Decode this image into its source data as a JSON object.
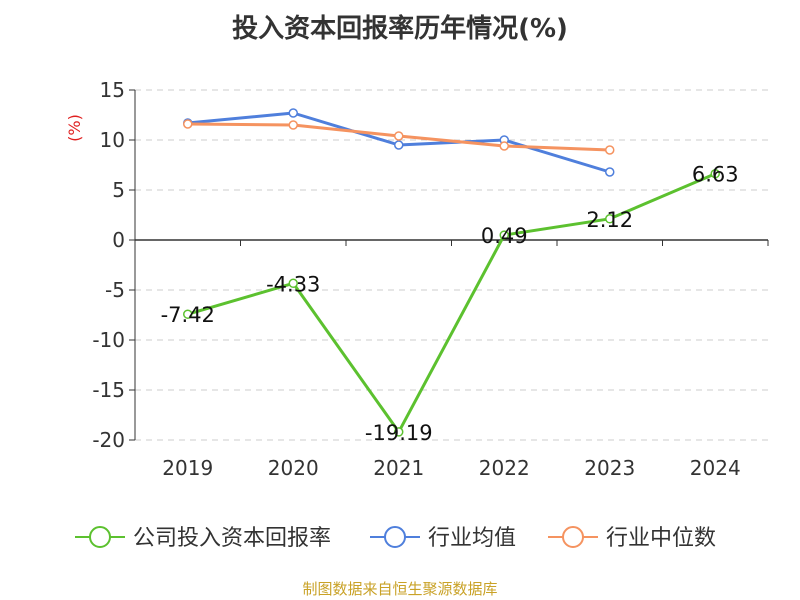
{
  "chart_data": {
    "type": "line",
    "title": "投入资本回报率历年情况(%)",
    "ylabel": "(%)",
    "ylim": [
      -20,
      15
    ],
    "yticks": [
      15,
      10,
      5,
      0,
      -5,
      -10,
      -15,
      -20
    ],
    "categories": [
      "2019",
      "2020",
      "2021",
      "2022",
      "2023",
      "2024"
    ],
    "grid": true,
    "legend_position": "bottom",
    "series": [
      {
        "name": "公司投入资本回报率",
        "color": "#5cc12f",
        "values": [
          -7.42,
          -4.33,
          -19.19,
          0.49,
          2.12,
          6.63
        ],
        "labels": [
          "-7.42",
          "-4.33",
          "-19.19",
          "0.49",
          "2.12",
          "6.63"
        ]
      },
      {
        "name": "行业均值",
        "color": "#4f7fdc",
        "values": [
          11.7,
          12.7,
          9.5,
          10.0,
          6.8,
          null
        ]
      },
      {
        "name": "行业中位数",
        "color": "#f59360",
        "values": [
          11.6,
          11.5,
          10.4,
          9.4,
          9.0,
          null
        ]
      }
    ]
  },
  "source": "制图数据来自恒生聚源数据库",
  "colors": {
    "unit": "#e02020",
    "axis": "#333333",
    "grid": "#cccccc",
    "source": "#c9a227"
  }
}
